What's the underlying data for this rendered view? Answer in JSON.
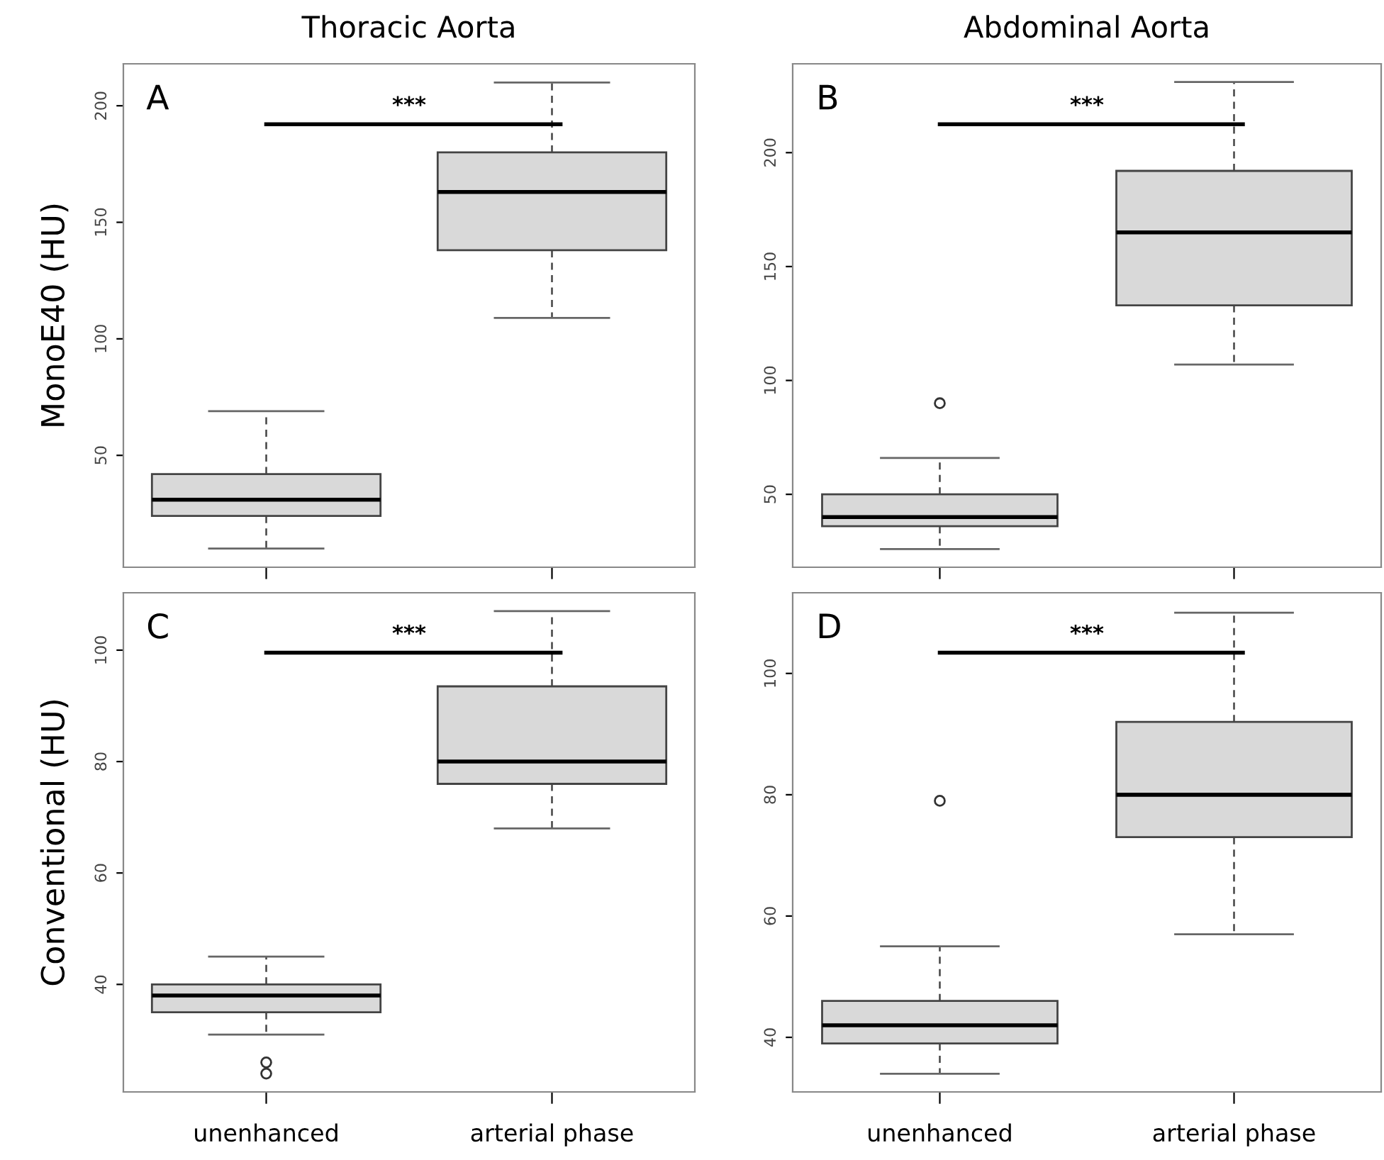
{
  "chart_data": [
    {
      "type": "box",
      "title": "Thoracic Aorta",
      "ylabel": "MonoE40 (HU)",
      "categories": [
        null,
        null
      ],
      "color": "#d9d9d9",
      "tick_labels": "y",
      "ylim": [
        2,
        218
      ],
      "yticks": [
        50,
        100,
        150,
        200
      ],
      "boxes": [
        {
          "low": 10,
          "q1": 24,
          "median": 31,
          "q3": 42,
          "high": 69
        },
        {
          "low": 109,
          "q1": 138,
          "median": 163,
          "q3": 180,
          "high": 210
        }
      ],
      "annotations": [
        "A",
        "***"
      ]
    },
    {
      "type": "box",
      "title": "Abdominal Aorta",
      "categories": [
        null,
        null
      ],
      "color": "#d9d9d9",
      "tick_labels": "y",
      "ylim": [
        18,
        239
      ],
      "yticks": [
        50,
        100,
        150,
        200
      ],
      "boxes": [
        {
          "low": 26,
          "q1": 36,
          "median": 40,
          "q3": 50,
          "high": 66,
          "outliers": [
            90
          ]
        },
        {
          "low": 107,
          "q1": 133,
          "median": 165,
          "q3": 192,
          "high": 231
        }
      ],
      "annotations": [
        "B",
        "***"
      ]
    },
    {
      "type": "box",
      "ylabel": "Conventional (HU)",
      "categories": [
        "unenhanced",
        "arterial phase"
      ],
      "color": "#d9d9d9",
      "ylim": [
        20.7,
        110.3
      ],
      "yticks": [
        40,
        60,
        80,
        100
      ],
      "boxes": [
        {
          "low": 31,
          "q1": 35,
          "median": 38,
          "q3": 40,
          "high": 45,
          "outliers": [
            26,
            24
          ]
        },
        {
          "low": 68,
          "q1": 76,
          "median": 80,
          "q3": 93.5,
          "high": 107
        }
      ],
      "annotations": [
        "C",
        "***"
      ]
    },
    {
      "type": "box",
      "categories": [
        "unenhanced",
        "arterial phase"
      ],
      "color": "#d9d9d9",
      "ylim": [
        31,
        113.3
      ],
      "yticks": [
        40,
        60,
        80,
        100
      ],
      "boxes": [
        {
          "low": 34,
          "q1": 39,
          "median": 42,
          "q3": 46,
          "high": 55,
          "outliers": [
            79
          ]
        },
        {
          "low": 57,
          "q1": 73,
          "median": 80,
          "q3": 92,
          "high": 110
        }
      ],
      "annotations": [
        "D",
        "***"
      ]
    }
  ]
}
